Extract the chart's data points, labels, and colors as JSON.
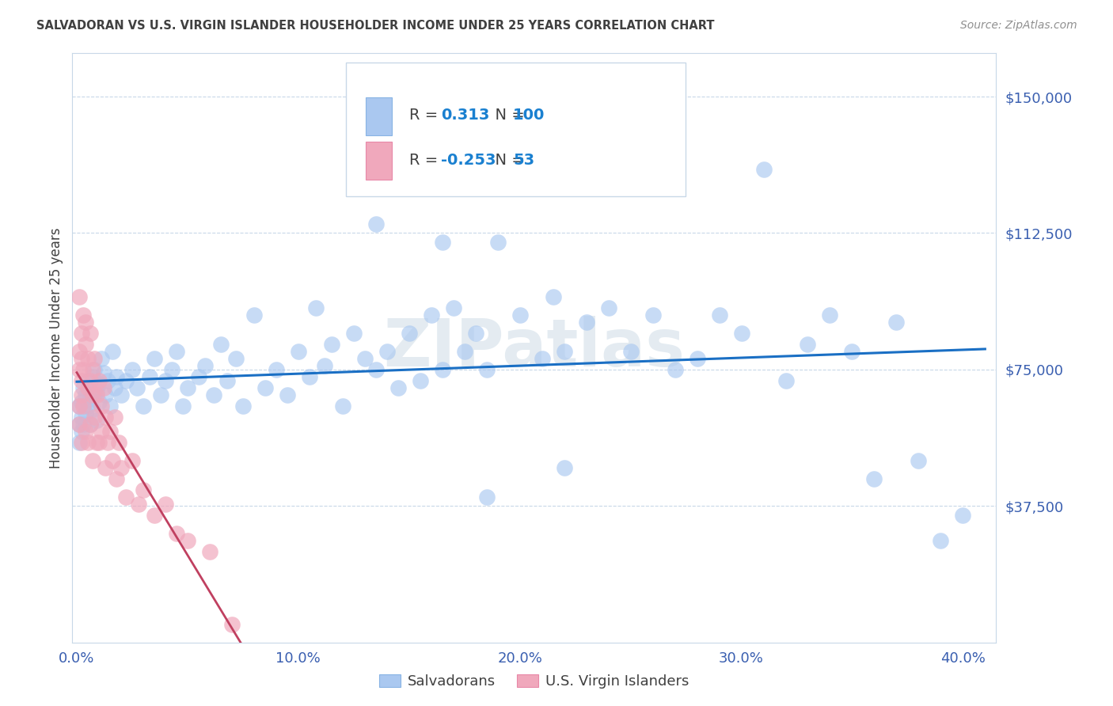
{
  "title": "SALVADORAN VS U.S. VIRGIN ISLANDER HOUSEHOLDER INCOME UNDER 25 YEARS CORRELATION CHART",
  "source": "Source: ZipAtlas.com",
  "xlabel_ticks": [
    "0.0%",
    "10.0%",
    "20.0%",
    "30.0%",
    "40.0%"
  ],
  "xlabel_tick_vals": [
    0.0,
    0.1,
    0.2,
    0.3,
    0.4
  ],
  "ylabel_ticks": [
    "$37,500",
    "$75,000",
    "$112,500",
    "$150,000"
  ],
  "ylabel_tick_vals": [
    37500,
    75000,
    112500,
    150000
  ],
  "ylabel_label": "Householder Income Under 25 years",
  "xlim": [
    -0.002,
    0.415
  ],
  "ylim": [
    0,
    162000
  ],
  "watermark": "ZIPatlas",
  "legend_labels": [
    "Salvadorans",
    "U.S. Virgin Islanders"
  ],
  "r_salvadoran": "0.313",
  "n_salvadoran": "100",
  "r_virgin_islander": "-0.253",
  "n_virgin_islander": "53",
  "blue_scatter": "#aac8f0",
  "pink_scatter": "#f0a8bc",
  "blue_line": "#1a6fc4",
  "pink_line": "#c04060",
  "grid_color": "#c8d8e8",
  "bg_color": "#ffffff",
  "title_color": "#404040",
  "source_color": "#909090",
  "ytick_color": "#3a5fb0",
  "xtick_color": "#3a5fb0",
  "ylabel_color": "#404040",
  "legend_text_dark": "#404040",
  "legend_text_blue": "#3a5fb0",
  "legend_n_color": "#1a80d0",
  "sal_x": [
    0.001,
    0.001,
    0.001,
    0.002,
    0.002,
    0.002,
    0.003,
    0.003,
    0.004,
    0.004,
    0.005,
    0.005,
    0.006,
    0.006,
    0.007,
    0.007,
    0.008,
    0.008,
    0.009,
    0.009,
    0.01,
    0.01,
    0.011,
    0.012,
    0.013,
    0.014,
    0.015,
    0.016,
    0.017,
    0.018,
    0.02,
    0.022,
    0.025,
    0.027,
    0.03,
    0.033,
    0.035,
    0.038,
    0.04,
    0.043,
    0.045,
    0.048,
    0.05,
    0.055,
    0.058,
    0.062,
    0.065,
    0.068,
    0.072,
    0.075,
    0.08,
    0.085,
    0.09,
    0.095,
    0.1,
    0.105,
    0.108,
    0.112,
    0.115,
    0.12,
    0.125,
    0.13,
    0.135,
    0.14,
    0.145,
    0.15,
    0.155,
    0.16,
    0.165,
    0.17,
    0.175,
    0.18,
    0.185,
    0.19,
    0.2,
    0.21,
    0.215,
    0.22,
    0.23,
    0.24,
    0.25,
    0.26,
    0.27,
    0.28,
    0.29,
    0.3,
    0.31,
    0.32,
    0.33,
    0.34,
    0.35,
    0.36,
    0.37,
    0.38,
    0.39,
    0.4,
    0.135,
    0.165,
    0.185,
    0.22
  ],
  "sal_y": [
    60000,
    65000,
    55000,
    62000,
    58000,
    66000,
    70000,
    60000,
    63000,
    68000,
    65000,
    72000,
    67000,
    60000,
    73000,
    64000,
    68000,
    75000,
    69000,
    61000,
    71000,
    66000,
    78000,
    74000,
    68000,
    72000,
    65000,
    80000,
    70000,
    73000,
    68000,
    72000,
    75000,
    70000,
    65000,
    73000,
    78000,
    68000,
    72000,
    75000,
    80000,
    65000,
    70000,
    73000,
    76000,
    68000,
    82000,
    72000,
    78000,
    65000,
    90000,
    70000,
    75000,
    68000,
    80000,
    73000,
    92000,
    76000,
    82000,
    65000,
    85000,
    78000,
    75000,
    80000,
    70000,
    85000,
    72000,
    90000,
    75000,
    92000,
    80000,
    85000,
    75000,
    110000,
    90000,
    78000,
    95000,
    80000,
    88000,
    92000,
    80000,
    90000,
    75000,
    78000,
    90000,
    85000,
    130000,
    72000,
    82000,
    90000,
    80000,
    45000,
    88000,
    50000,
    28000,
    35000,
    115000,
    110000,
    40000,
    48000
  ],
  "vir_x": [
    0.001,
    0.001,
    0.001,
    0.001,
    0.001,
    0.002,
    0.002,
    0.002,
    0.002,
    0.002,
    0.003,
    0.003,
    0.003,
    0.004,
    0.004,
    0.004,
    0.005,
    0.005,
    0.005,
    0.006,
    0.006,
    0.006,
    0.007,
    0.007,
    0.007,
    0.008,
    0.008,
    0.009,
    0.009,
    0.01,
    0.01,
    0.011,
    0.011,
    0.012,
    0.013,
    0.013,
    0.014,
    0.015,
    0.016,
    0.017,
    0.018,
    0.019,
    0.02,
    0.022,
    0.025,
    0.028,
    0.03,
    0.035,
    0.04,
    0.045,
    0.05,
    0.06,
    0.07
  ],
  "vir_y": [
    75000,
    80000,
    65000,
    60000,
    95000,
    72000,
    85000,
    68000,
    78000,
    55000,
    90000,
    65000,
    75000,
    82000,
    58000,
    88000,
    70000,
    78000,
    55000,
    72000,
    85000,
    60000,
    68000,
    75000,
    50000,
    62000,
    78000,
    55000,
    68000,
    72000,
    55000,
    65000,
    58000,
    70000,
    48000,
    62000,
    55000,
    58000,
    50000,
    62000,
    45000,
    55000,
    48000,
    40000,
    50000,
    38000,
    42000,
    35000,
    38000,
    30000,
    28000,
    25000,
    5000
  ]
}
